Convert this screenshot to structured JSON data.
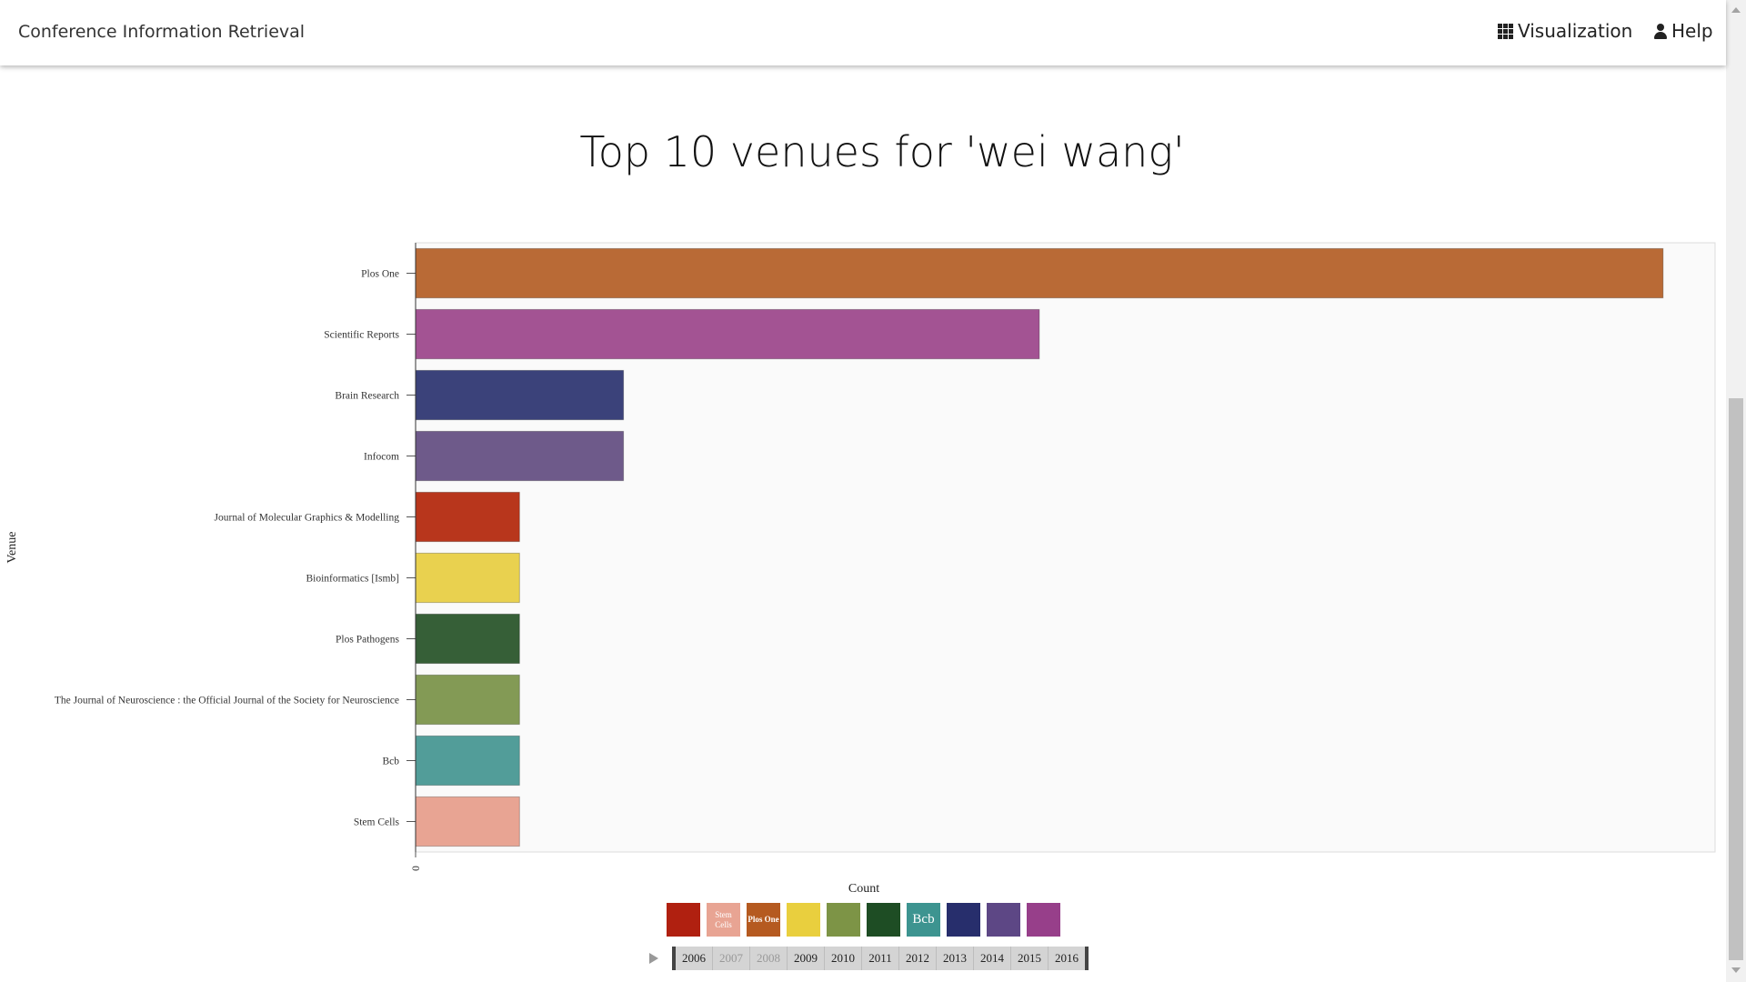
{
  "navbar": {
    "brand": "Conference Information Retrieval",
    "links": [
      {
        "label": "Visualization",
        "icon": "th-grid-icon"
      },
      {
        "label": "Help",
        "icon": "user-icon"
      }
    ]
  },
  "chart_data": {
    "type": "bar",
    "orientation": "horizontal",
    "title": "Top 10 venues for 'wei wang'",
    "xlabel": "Count",
    "ylabel": "Venue",
    "x_ticks": [
      "0"
    ],
    "xlim": [
      0,
      12.5
    ],
    "grid": false,
    "categories": [
      "Plos One",
      "Scientific Reports",
      "Brain Research",
      "Infocom",
      "Journal of Molecular Graphics & Modelling",
      "Bioinformatics [Ismb]",
      "Plos Pathogens",
      "The Journal of Neuroscience : the Official Journal of the Society for Neuroscience",
      "Bcb",
      "Stem Cells"
    ],
    "values": [
      12,
      6,
      2,
      2,
      1,
      1,
      1,
      1,
      1,
      1
    ],
    "colors": [
      "#b96a36",
      "#a35393",
      "#3b427a",
      "#6e5a8a",
      "#b8361c",
      "#e9d14f",
      "#365f37",
      "#839a55",
      "#529d99",
      "#e8a493"
    ]
  },
  "legend": [
    {
      "label": "",
      "color": "#b02010"
    },
    {
      "label": "Stem Cells",
      "color": "#e8a493"
    },
    {
      "label": "Plos One",
      "color": "#b55a20"
    },
    {
      "label": "",
      "color": "#e9cf3e"
    },
    {
      "label": "",
      "color": "#7d9446"
    },
    {
      "label": "",
      "color": "#1e4d24"
    },
    {
      "label": "Bcb",
      "color": "#3d9490"
    },
    {
      "label": "",
      "color": "#272e6c"
    },
    {
      "label": "",
      "color": "#5d4785"
    },
    {
      "label": "",
      "color": "#973f8a"
    }
  ],
  "timeline": {
    "years": [
      "2006",
      "2007",
      "2008",
      "2009",
      "2010",
      "2011",
      "2012",
      "2013",
      "2014",
      "2015",
      "2016"
    ],
    "dimmed": [
      "2007",
      "2008"
    ]
  }
}
